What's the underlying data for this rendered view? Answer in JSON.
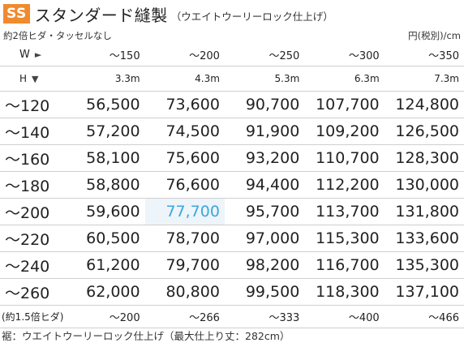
{
  "header": {
    "badge": "SS",
    "title": "スタンダード縫製",
    "subtitle": "（ウエイトウーリーロック仕上げ）"
  },
  "subhead": {
    "left": "約2倍ヒダ・タッセルなし",
    "right": "円(税別)/cm"
  },
  "width_row": {
    "label": "W",
    "arrow": "►",
    "values": [
      "～150",
      "～200",
      "～250",
      "～300",
      "～350"
    ]
  },
  "length_row": {
    "label": "H",
    "arrow": "▼",
    "values": [
      "3.3m",
      "4.3m",
      "5.3m",
      "6.3m",
      "7.3m"
    ]
  },
  "rows": [
    {
      "height": "～120",
      "prices": [
        "56,500",
        "73,600",
        "90,700",
        "107,700",
        "124,800"
      ]
    },
    {
      "height": "～140",
      "prices": [
        "57,200",
        "74,500",
        "91,900",
        "109,200",
        "126,500"
      ]
    },
    {
      "height": "～160",
      "prices": [
        "58,100",
        "75,600",
        "93,200",
        "110,700",
        "128,300"
      ]
    },
    {
      "height": "～180",
      "prices": [
        "58,800",
        "76,600",
        "94,400",
        "112,200",
        "130,000"
      ]
    },
    {
      "height": "～200",
      "prices": [
        "59,600",
        "77,700",
        "95,700",
        "113,700",
        "131,800"
      ]
    },
    {
      "height": "～220",
      "prices": [
        "60,500",
        "78,700",
        "97,000",
        "115,300",
        "133,600"
      ]
    },
    {
      "height": "～240",
      "prices": [
        "61,200",
        "79,700",
        "98,200",
        "116,700",
        "135,300"
      ]
    },
    {
      "height": "～260",
      "prices": [
        "62,000",
        "80,800",
        "99,500",
        "118,300",
        "137,100"
      ]
    }
  ],
  "highlight": {
    "row": 4,
    "col": 1,
    "color": "#3ba7dc"
  },
  "footer_row": {
    "label": "(約1.5倍ヒダ)",
    "values": [
      "～200",
      "～266",
      "～333",
      "～400",
      "～466"
    ]
  },
  "note": "裾：ウエイトウーリーロック仕上げ（最大仕上り丈：282cm）",
  "colors": {
    "badge": "#f08a2e",
    "highlight": "#3ba7dc"
  }
}
